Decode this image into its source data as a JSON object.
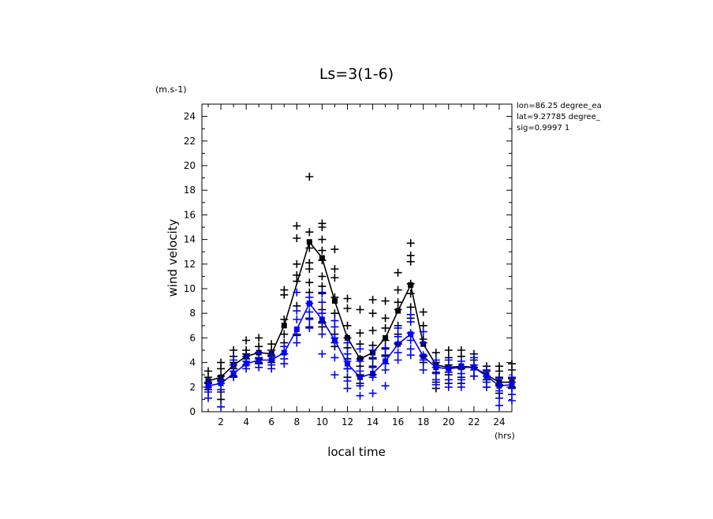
{
  "chart_data": {
    "type": "scatter",
    "title": "Ls=3(1-6)",
    "xlabel": "local time",
    "ylabel": "wind velocity",
    "x_unit": "(hrs)",
    "y_unit": "(m.s-1)",
    "xlim": [
      0.5,
      25
    ],
    "ylim": [
      0,
      25
    ],
    "x_ticks": [
      2,
      4,
      6,
      8,
      10,
      12,
      14,
      16,
      18,
      20,
      22,
      24
    ],
    "y_ticks": [
      0,
      2,
      4,
      6,
      8,
      10,
      12,
      14,
      16,
      18,
      20,
      22,
      24
    ],
    "info": [
      "lon=86.25 degree_ea",
      "lat=9.27785 degree_",
      "sig=0.9997 1"
    ],
    "colors": {
      "black_series": "#000000",
      "blue_series": "#0000ff"
    },
    "series": [
      {
        "name": "black-mean",
        "color": "#000000",
        "style": "line",
        "x": [
          1,
          2,
          3,
          4,
          5,
          6,
          7,
          9,
          10,
          11,
          12,
          13,
          14,
          15,
          16,
          17,
          18,
          19,
          20,
          21,
          22,
          23,
          24,
          25
        ],
        "y": [
          2.5,
          2.8,
          3.8,
          4.5,
          4.8,
          4.7,
          7.0,
          13.8,
          12.5,
          9.0,
          6.0,
          4.3,
          4.8,
          6.0,
          8.2,
          10.3,
          5.5,
          3.8,
          3.6,
          3.7,
          3.6,
          3.0,
          2.4,
          2.4
        ]
      },
      {
        "name": "blue-mean",
        "color": "#0000ff",
        "style": "line",
        "x": [
          1,
          2,
          3,
          4,
          5,
          6,
          7,
          8,
          9,
          10,
          11,
          12,
          13,
          14,
          15,
          16,
          17,
          18,
          19,
          20,
          21,
          22,
          23,
          24,
          25
        ],
        "y": [
          2.1,
          2.3,
          3.1,
          3.9,
          4.2,
          4.2,
          4.8,
          6.7,
          8.8,
          7.5,
          5.8,
          3.9,
          2.8,
          3.1,
          4.1,
          5.5,
          6.3,
          4.5,
          3.6,
          3.5,
          3.6,
          3.6,
          2.9,
          2.1,
          2.2
        ]
      },
      {
        "name": "black-samples",
        "color": "#000000",
        "style": "plus",
        "points": [
          [
            1,
            3.3
          ],
          [
            1,
            2.8
          ],
          [
            1,
            2.3
          ],
          [
            1,
            1.8
          ],
          [
            2,
            4.0
          ],
          [
            2,
            3.5
          ],
          [
            2,
            2.9
          ],
          [
            2,
            2.5
          ],
          [
            2,
            1.6
          ],
          [
            2,
            1.0
          ],
          [
            3,
            5.0
          ],
          [
            3,
            4.5
          ],
          [
            3,
            4.0
          ],
          [
            3,
            3.5
          ],
          [
            3,
            2.9
          ],
          [
            4,
            5.8
          ],
          [
            4,
            5.0
          ],
          [
            4,
            4.7
          ],
          [
            4,
            4.3
          ],
          [
            4,
            3.8
          ],
          [
            5,
            6.0
          ],
          [
            5,
            5.3
          ],
          [
            5,
            4.8
          ],
          [
            5,
            4.3
          ],
          [
            5,
            3.9
          ],
          [
            6,
            5.5
          ],
          [
            6,
            5.0
          ],
          [
            6,
            4.5
          ],
          [
            6,
            4.0
          ],
          [
            7,
            9.9
          ],
          [
            7,
            9.5
          ],
          [
            7,
            7.5
          ],
          [
            7,
            6.3
          ],
          [
            7,
            5.6
          ],
          [
            8,
            15.1
          ],
          [
            8,
            14.1
          ],
          [
            8,
            12.0
          ],
          [
            8,
            11.1
          ],
          [
            8,
            10.6
          ],
          [
            8,
            8.6
          ],
          [
            8,
            6.2
          ],
          [
            9,
            19.1
          ],
          [
            9,
            14.6
          ],
          [
            9,
            13.3
          ],
          [
            9,
            12.1
          ],
          [
            9,
            11.6
          ],
          [
            9,
            10.5
          ],
          [
            9,
            9.7
          ],
          [
            9,
            7.6
          ],
          [
            9,
            6.9
          ],
          [
            10,
            15.3
          ],
          [
            10,
            15.0
          ],
          [
            10,
            14.0
          ],
          [
            10,
            13.1
          ],
          [
            10,
            12.3
          ],
          [
            10,
            11.0
          ],
          [
            10,
            10.2
          ],
          [
            10,
            9.6
          ],
          [
            10,
            8.3
          ],
          [
            10,
            7.3
          ],
          [
            10,
            6.9
          ],
          [
            11,
            13.2
          ],
          [
            11,
            11.6
          ],
          [
            11,
            10.9
          ],
          [
            11,
            9.3
          ],
          [
            11,
            8.0
          ],
          [
            11,
            6.3
          ],
          [
            11,
            5.3
          ],
          [
            12,
            9.2
          ],
          [
            12,
            8.4
          ],
          [
            12,
            7.0
          ],
          [
            12,
            6.0
          ],
          [
            12,
            5.2
          ],
          [
            12,
            4.3
          ],
          [
            12,
            3.5
          ],
          [
            12,
            2.8
          ],
          [
            13,
            8.3
          ],
          [
            13,
            6.4
          ],
          [
            13,
            5.5
          ],
          [
            13,
            4.3
          ],
          [
            13,
            3.7
          ],
          [
            13,
            3.0
          ],
          [
            13,
            2.3
          ],
          [
            14,
            9.1
          ],
          [
            14,
            8.0
          ],
          [
            14,
            6.6
          ],
          [
            14,
            5.4
          ],
          [
            14,
            4.3
          ],
          [
            14,
            3.7
          ],
          [
            14,
            3.0
          ],
          [
            15,
            9.0
          ],
          [
            15,
            7.6
          ],
          [
            15,
            6.8
          ],
          [
            15,
            5.8
          ],
          [
            15,
            5.1
          ],
          [
            15,
            4.6
          ],
          [
            16,
            11.3
          ],
          [
            16,
            9.9
          ],
          [
            16,
            8.9
          ],
          [
            16,
            8.3
          ],
          [
            16,
            7.0
          ],
          [
            16,
            6.3
          ],
          [
            16,
            5.5
          ],
          [
            17,
            13.7
          ],
          [
            17,
            12.7
          ],
          [
            17,
            12.2
          ],
          [
            17,
            10.4
          ],
          [
            17,
            9.6
          ],
          [
            17,
            8.5
          ],
          [
            17,
            7.6
          ],
          [
            18,
            8.1
          ],
          [
            18,
            7.0
          ],
          [
            18,
            5.9
          ],
          [
            18,
            4.5
          ],
          [
            18,
            4.0
          ],
          [
            19,
            4.8
          ],
          [
            19,
            4.0
          ],
          [
            19,
            3.2
          ],
          [
            19,
            2.4
          ],
          [
            19,
            1.9
          ],
          [
            20,
            5.0
          ],
          [
            20,
            4.4
          ],
          [
            20,
            3.8
          ],
          [
            20,
            3.0
          ],
          [
            20,
            2.3
          ],
          [
            21,
            5.0
          ],
          [
            21,
            4.5
          ],
          [
            21,
            3.5
          ],
          [
            21,
            2.8
          ],
          [
            21,
            2.3
          ],
          [
            22,
            4.7
          ],
          [
            22,
            4.2
          ],
          [
            22,
            3.6
          ],
          [
            22,
            2.9
          ],
          [
            23,
            3.7
          ],
          [
            23,
            3.3
          ],
          [
            23,
            2.6
          ],
          [
            23,
            2.0
          ],
          [
            24,
            3.7
          ],
          [
            24,
            3.3
          ],
          [
            24,
            2.8
          ],
          [
            24,
            2.1
          ],
          [
            24,
            1.5
          ],
          [
            25,
            3.9
          ],
          [
            25,
            3.4
          ],
          [
            25,
            2.7
          ],
          [
            25,
            2.0
          ]
        ]
      },
      {
        "name": "blue-samples",
        "color": "#0000ff",
        "style": "plus",
        "points": [
          [
            1,
            2.4
          ],
          [
            1,
            2.0
          ],
          [
            1,
            1.6
          ],
          [
            1,
            1.1
          ],
          [
            2,
            2.6
          ],
          [
            2,
            2.3
          ],
          [
            2,
            1.8
          ],
          [
            2,
            0.4
          ],
          [
            3,
            4.2
          ],
          [
            3,
            3.8
          ],
          [
            3,
            3.3
          ],
          [
            3,
            2.8
          ],
          [
            4,
            4.5
          ],
          [
            4,
            4.1
          ],
          [
            4,
            3.8
          ],
          [
            4,
            3.5
          ],
          [
            5,
            4.8
          ],
          [
            5,
            4.4
          ],
          [
            5,
            4.0
          ],
          [
            5,
            3.6
          ],
          [
            6,
            4.6
          ],
          [
            6,
            4.2
          ],
          [
            6,
            3.8
          ],
          [
            6,
            3.5
          ],
          [
            7,
            5.3
          ],
          [
            7,
            4.7
          ],
          [
            7,
            4.3
          ],
          [
            7,
            3.9
          ],
          [
            8,
            9.7
          ],
          [
            8,
            8.2
          ],
          [
            8,
            7.5
          ],
          [
            8,
            6.3
          ],
          [
            8,
            5.6
          ],
          [
            9,
            9.3
          ],
          [
            9,
            8.8
          ],
          [
            9,
            8.1
          ],
          [
            9,
            7.5
          ],
          [
            9,
            6.8
          ],
          [
            10,
            9.7
          ],
          [
            10,
            8.9
          ],
          [
            10,
            8.0
          ],
          [
            10,
            7.2
          ],
          [
            10,
            6.3
          ],
          [
            10,
            4.7
          ],
          [
            11,
            7.4
          ],
          [
            11,
            6.9
          ],
          [
            11,
            6.0
          ],
          [
            11,
            5.6
          ],
          [
            11,
            4.4
          ],
          [
            11,
            3.0
          ],
          [
            12,
            5.6
          ],
          [
            12,
            4.7
          ],
          [
            12,
            4.1
          ],
          [
            12,
            3.5
          ],
          [
            12,
            2.5
          ],
          [
            12,
            1.9
          ],
          [
            13,
            5.1
          ],
          [
            13,
            4.1
          ],
          [
            13,
            3.3
          ],
          [
            13,
            2.9
          ],
          [
            13,
            2.1
          ],
          [
            13,
            1.3
          ],
          [
            14,
            5.0
          ],
          [
            14,
            4.4
          ],
          [
            14,
            3.6
          ],
          [
            14,
            2.8
          ],
          [
            14,
            1.5
          ],
          [
            15,
            5.2
          ],
          [
            15,
            4.5
          ],
          [
            15,
            3.9
          ],
          [
            15,
            3.4
          ],
          [
            15,
            2.1
          ],
          [
            16,
            6.8
          ],
          [
            16,
            6.1
          ],
          [
            16,
            5.6
          ],
          [
            16,
            4.8
          ],
          [
            16,
            4.2
          ],
          [
            17,
            7.9
          ],
          [
            17,
            7.3
          ],
          [
            17,
            6.4
          ],
          [
            17,
            5.8
          ],
          [
            17,
            5.1
          ],
          [
            17,
            4.6
          ],
          [
            18,
            6.5
          ],
          [
            18,
            5.6
          ],
          [
            18,
            4.6
          ],
          [
            18,
            4.2
          ],
          [
            18,
            3.4
          ],
          [
            19,
            4.2
          ],
          [
            19,
            3.6
          ],
          [
            19,
            3.1
          ],
          [
            19,
            2.6
          ],
          [
            19,
            2.2
          ],
          [
            20,
            4.2
          ],
          [
            20,
            3.6
          ],
          [
            20,
            3.2
          ],
          [
            20,
            2.6
          ],
          [
            20,
            2.0
          ],
          [
            21,
            4.1
          ],
          [
            21,
            3.6
          ],
          [
            21,
            3.1
          ],
          [
            21,
            2.6
          ],
          [
            21,
            2.0
          ],
          [
            22,
            4.4
          ],
          [
            22,
            3.8
          ],
          [
            22,
            3.4
          ],
          [
            22,
            2.9
          ],
          [
            23,
            3.4
          ],
          [
            23,
            2.9
          ],
          [
            23,
            2.4
          ],
          [
            23,
            2.0
          ],
          [
            24,
            2.7
          ],
          [
            24,
            2.2
          ],
          [
            24,
            1.7
          ],
          [
            24,
            1.1
          ],
          [
            24,
            0.5
          ],
          [
            25,
            2.8
          ],
          [
            25,
            2.4
          ],
          [
            25,
            1.9
          ],
          [
            25,
            1.4
          ],
          [
            25,
            0.9
          ]
        ]
      }
    ]
  }
}
